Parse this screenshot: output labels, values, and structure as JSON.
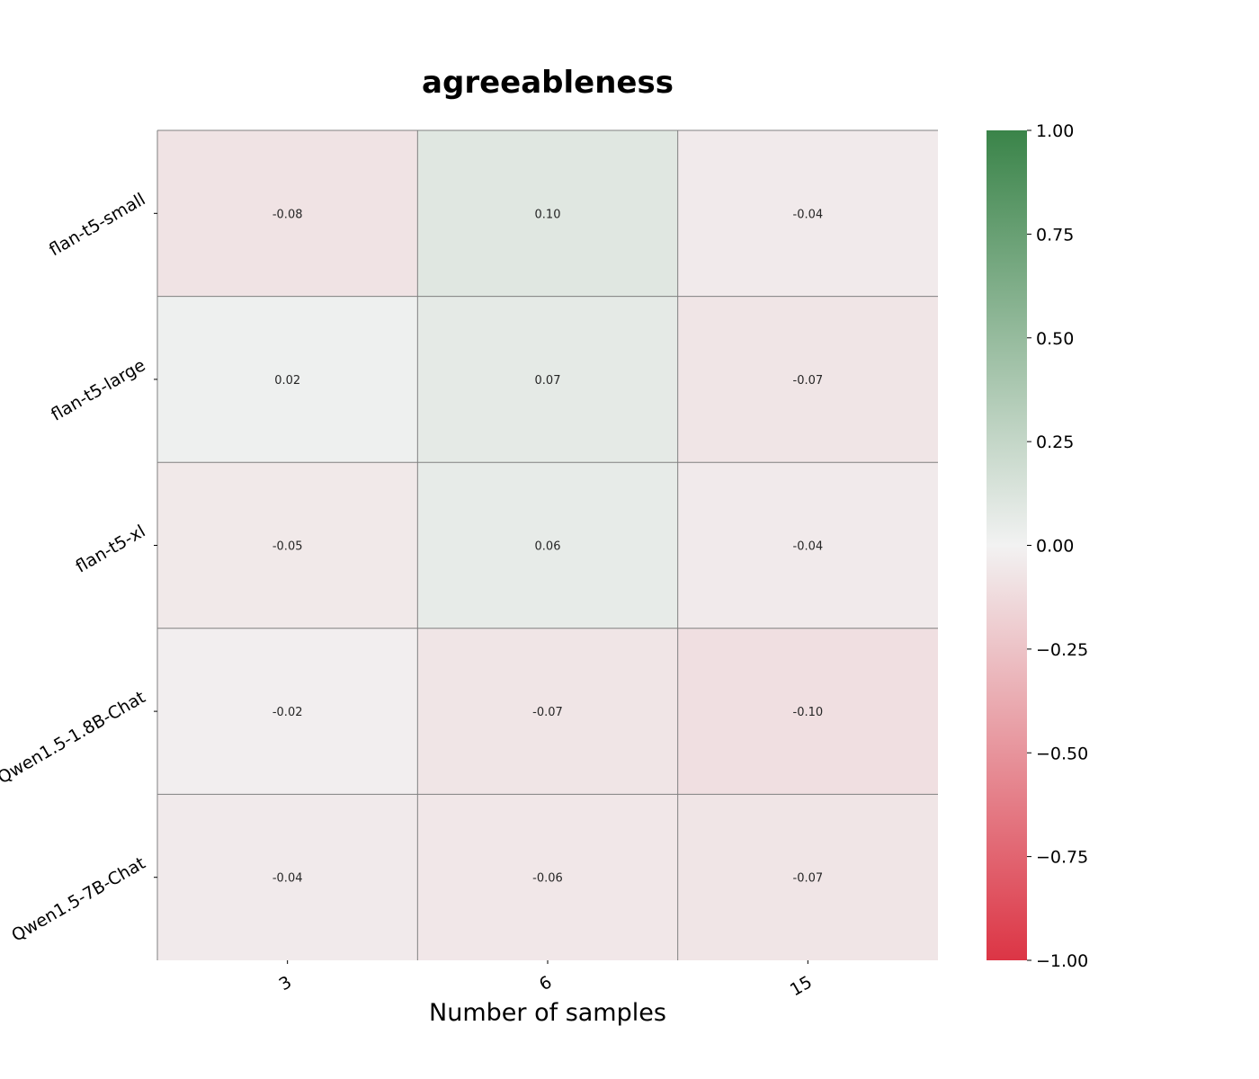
{
  "chart_data": {
    "type": "heatmap",
    "title": "agreeableness",
    "xlabel": "Number of samples",
    "ylabel": "",
    "x_categories": [
      "3",
      "6",
      "15"
    ],
    "y_categories": [
      "flan-t5-small",
      "flan-t5-large",
      "flan-t5-xl",
      "Qwen1.5-1.8B-Chat",
      "Qwen1.5-7B-Chat"
    ],
    "values": [
      [
        -0.08,
        0.1,
        -0.04
      ],
      [
        0.02,
        0.07,
        -0.07
      ],
      [
        -0.05,
        0.06,
        -0.04
      ],
      [
        -0.02,
        -0.07,
        -0.1
      ],
      [
        -0.04,
        -0.06,
        -0.07
      ]
    ],
    "cell_labels": [
      [
        "-0.08",
        "0.10",
        "-0.04"
      ],
      [
        "0.02",
        "0.07",
        "-0.07"
      ],
      [
        "-0.05",
        "0.06",
        "-0.04"
      ],
      [
        "-0.02",
        "-0.07",
        "-0.10"
      ],
      [
        "-0.04",
        "-0.06",
        "-0.07"
      ]
    ],
    "colorbar": {
      "range": [
        -1.0,
        1.0
      ],
      "ticks": [
        "1.00",
        "0.75",
        "0.50",
        "0.25",
        "0.00",
        "−0.25",
        "−0.50",
        "−0.75",
        "−1.00"
      ],
      "tick_values": [
        1.0,
        0.75,
        0.5,
        0.25,
        0.0,
        -0.25,
        -0.5,
        -0.75,
        -1.0
      ],
      "colors": {
        "negative": "#dc3545",
        "neutral": "#f2f2f2",
        "positive": "#3a8449"
      }
    },
    "grid": true,
    "gridline_color": "#808080"
  }
}
